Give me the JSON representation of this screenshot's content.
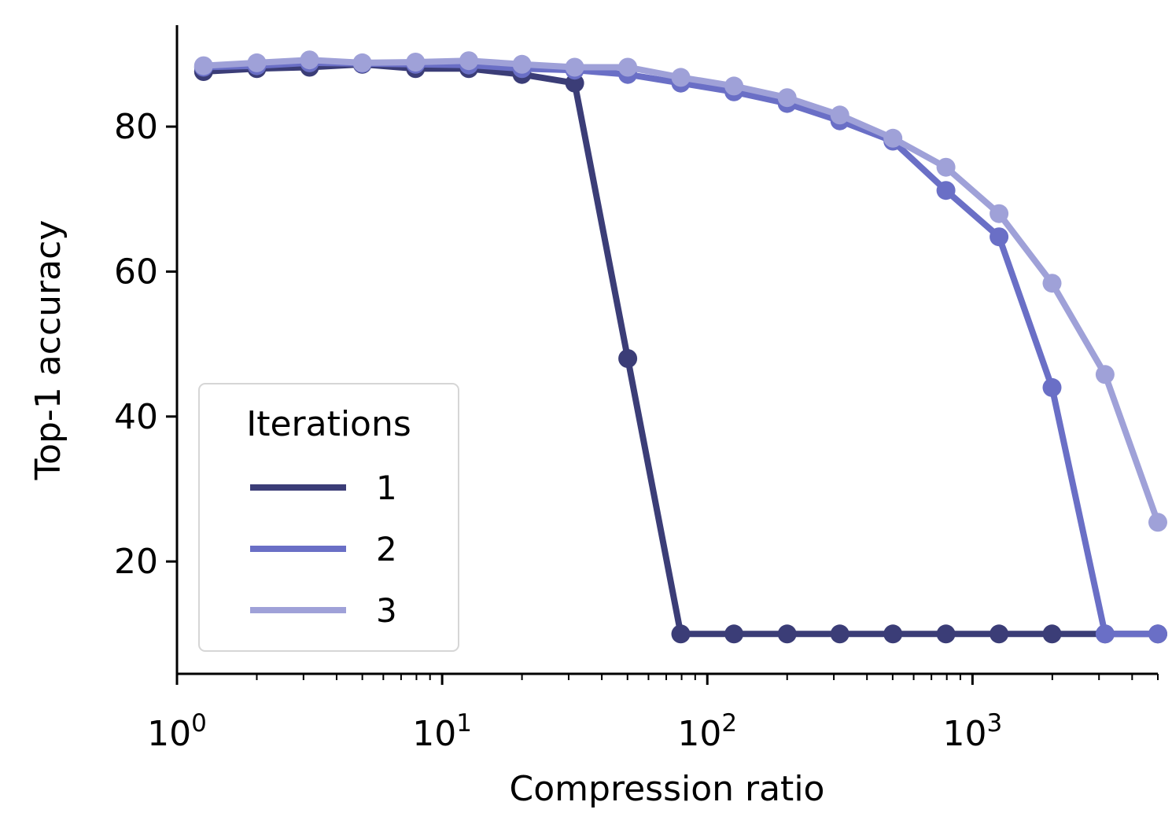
{
  "chart_data": {
    "type": "line",
    "xlabel": "Compression ratio",
    "ylabel": "Top-1 accuracy",
    "xscale": "log",
    "xlim": [
      1,
      5000
    ],
    "ylim": [
      4.5,
      94
    ],
    "x_ticks": [
      {
        "value": 1,
        "base": "10",
        "exp": "0"
      },
      {
        "value": 10,
        "base": "10",
        "exp": "1"
      },
      {
        "value": 100,
        "base": "10",
        "exp": "2"
      },
      {
        "value": 1000,
        "base": "10",
        "exp": "3"
      }
    ],
    "y_ticks": [
      {
        "value": 20,
        "label": "20"
      },
      {
        "value": 40,
        "label": "40"
      },
      {
        "value": 60,
        "label": "60"
      },
      {
        "value": 80,
        "label": "80"
      }
    ],
    "grid": false,
    "legend": {
      "title": "Iterations",
      "placement": "lower-left"
    },
    "series": [
      {
        "name": "1",
        "color": "#3b3d77",
        "points": [
          [
            1.26,
            87.6
          ],
          [
            2.0,
            88.0
          ],
          [
            3.16,
            88.2
          ],
          [
            5.0,
            88.6
          ],
          [
            7.94,
            88.0
          ],
          [
            12.6,
            88.0
          ],
          [
            20.0,
            87.2
          ],
          [
            31.6,
            86.0
          ],
          [
            50.1,
            48.0
          ],
          [
            79.4,
            10.0
          ],
          [
            126,
            10.0
          ],
          [
            200,
            10.0
          ],
          [
            316,
            10.0
          ],
          [
            501,
            10.0
          ],
          [
            794,
            10.0
          ],
          [
            1259,
            10.0
          ],
          [
            1995,
            10.0
          ],
          [
            3162,
            10.0
          ],
          [
            5000,
            10.0
          ]
        ]
      },
      {
        "name": "2",
        "color": "#6a6fc6",
        "points": [
          [
            1.26,
            88.2
          ],
          [
            2.0,
            88.4
          ],
          [
            3.16,
            88.8
          ],
          [
            5.0,
            88.7
          ],
          [
            7.94,
            88.6
          ],
          [
            12.6,
            88.5
          ],
          [
            20.0,
            88.0
          ],
          [
            31.6,
            87.8
          ],
          [
            50.1,
            87.2
          ],
          [
            79.4,
            86.0
          ],
          [
            126,
            84.8
          ],
          [
            200,
            83.2
          ],
          [
            316,
            80.8
          ],
          [
            501,
            78.0
          ],
          [
            794,
            71.2
          ],
          [
            1259,
            64.8
          ],
          [
            1995,
            44.0
          ],
          [
            3162,
            10.0
          ],
          [
            5000,
            10.0
          ]
        ]
      },
      {
        "name": "3",
        "color": "#9fa1d8",
        "points": [
          [
            1.26,
            88.4
          ],
          [
            2.0,
            88.8
          ],
          [
            3.16,
            89.2
          ],
          [
            5.0,
            88.8
          ],
          [
            7.94,
            88.9
          ],
          [
            12.6,
            89.1
          ],
          [
            20.0,
            88.6
          ],
          [
            31.6,
            88.2
          ],
          [
            50.1,
            88.2
          ],
          [
            79.4,
            86.8
          ],
          [
            126,
            85.6
          ],
          [
            200,
            84.0
          ],
          [
            316,
            81.6
          ],
          [
            501,
            78.4
          ],
          [
            794,
            74.4
          ],
          [
            1259,
            68.0
          ],
          [
            1995,
            58.4
          ],
          [
            3162,
            45.8
          ],
          [
            5000,
            25.4
          ]
        ]
      }
    ]
  }
}
